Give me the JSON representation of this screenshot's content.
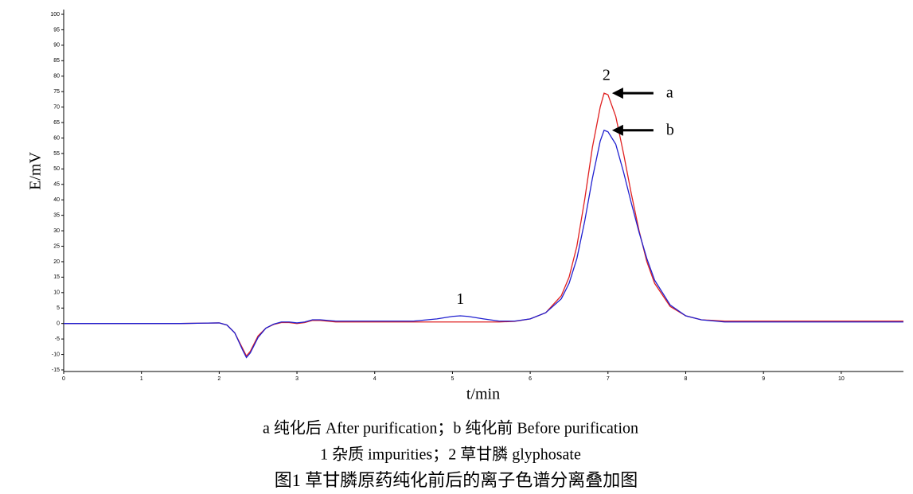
{
  "chart_data": {
    "type": "line",
    "xlabel": "t/min",
    "ylabel": "E/mV",
    "x": [
      0,
      0.5,
      1,
      1.5,
      2,
      2.1,
      2.2,
      2.3,
      2.35,
      2.4,
      2.5,
      2.6,
      2.7,
      2.8,
      2.9,
      3.0,
      3.1,
      3.2,
      3.3,
      3.5,
      4,
      4.5,
      4.8,
      5.0,
      5.1,
      5.2,
      5.4,
      5.6,
      5.8,
      6.0,
      6.2,
      6.4,
      6.5,
      6.6,
      6.7,
      6.8,
      6.9,
      6.95,
      7.0,
      7.1,
      7.2,
      7.3,
      7.4,
      7.5,
      7.6,
      7.8,
      8.0,
      8.2,
      8.5,
      9,
      10,
      10.8
    ],
    "series": [
      {
        "name": "a",
        "color": "#e02020",
        "values": [
          0,
          0,
          0,
          0,
          0.2,
          -0.5,
          -3,
          -8,
          -10.5,
          -9,
          -4,
          -1.5,
          -0.3,
          0.3,
          0.3,
          0,
          0.3,
          1,
          1,
          0.5,
          0.5,
          0.5,
          0.5,
          0.5,
          0.5,
          0.5,
          0.5,
          0.5,
          0.7,
          1.5,
          3.5,
          9,
          15,
          25,
          40,
          57,
          70,
          74.5,
          74,
          67,
          55,
          42,
          30,
          20,
          13,
          5.5,
          2.5,
          1.2,
          0.8,
          0.8,
          0.8,
          0.8
        ]
      },
      {
        "name": "b",
        "color": "#2020d0",
        "values": [
          0,
          0,
          0,
          0,
          0.2,
          -0.5,
          -3,
          -8.5,
          -11,
          -9.5,
          -4.5,
          -1.5,
          -0.2,
          0.5,
          0.5,
          0.2,
          0.5,
          1.2,
          1.2,
          0.8,
          0.8,
          0.8,
          1.5,
          2.3,
          2.5,
          2.3,
          1.5,
          0.8,
          0.8,
          1.5,
          3.5,
          8,
          13,
          21,
          33,
          47,
          59,
          62.5,
          62,
          58,
          49,
          39,
          29.5,
          21,
          14,
          6,
          2.5,
          1.2,
          0.5,
          0.5,
          0.5,
          0.5
        ]
      }
    ],
    "annotations": [
      {
        "text": "1",
        "x": 5.1,
        "y": 7.5
      },
      {
        "text": "2",
        "x": 6.98,
        "y": 80
      }
    ],
    "xlim": [
      0,
      10.8
    ],
    "xticks": [
      0,
      1,
      2,
      3,
      4,
      5,
      6,
      7,
      8,
      9,
      10
    ],
    "ylim": [
      -15,
      100
    ],
    "yticks": [
      -15,
      -10,
      -5,
      0,
      5,
      10,
      15,
      20,
      25,
      30,
      35,
      40,
      45,
      50,
      55,
      60,
      65,
      70,
      75,
      80,
      85,
      90,
      95,
      100
    ],
    "caption": [
      "a  纯化后 After purification；b  纯化前  Before purification",
      "1  杂质  impurities；2  草甘膦  glyphosate",
      "图1  草甘膦原药纯化前后的离子色谱分离叠加图"
    ]
  }
}
